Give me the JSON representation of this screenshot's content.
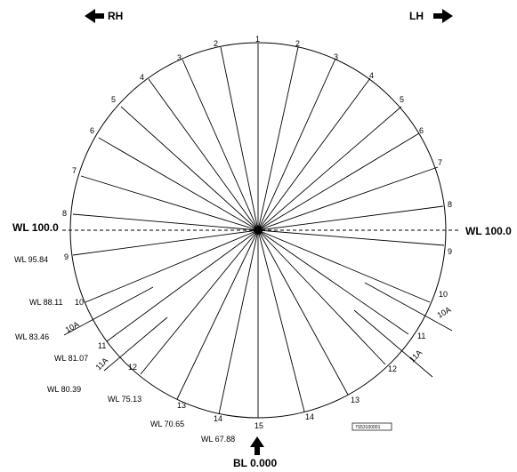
{
  "labels": {
    "rh": "RH",
    "lh": "LH",
    "wl_ref": "WL 100.0",
    "bl_ref": "BL 0.000",
    "drawing_id": "7S53100001"
  },
  "stations_right": [
    "1",
    "2",
    "3",
    "4",
    "5",
    "6",
    "7",
    "8",
    "9",
    "10",
    "10A",
    "11",
    "11A",
    "12",
    "13",
    "14",
    "15"
  ],
  "stations_left": [
    "2",
    "3",
    "4",
    "5",
    "6",
    "7",
    "8",
    "9",
    "10",
    "10A",
    "11",
    "11A",
    "12",
    "13",
    "14"
  ],
  "waterlines": [
    "WL 95.84",
    "WL 88.11",
    "WL 83.46",
    "WL 81.07",
    "WL 80.39",
    "WL 75.13",
    "WL 70.65",
    "WL 67.88"
  ]
}
